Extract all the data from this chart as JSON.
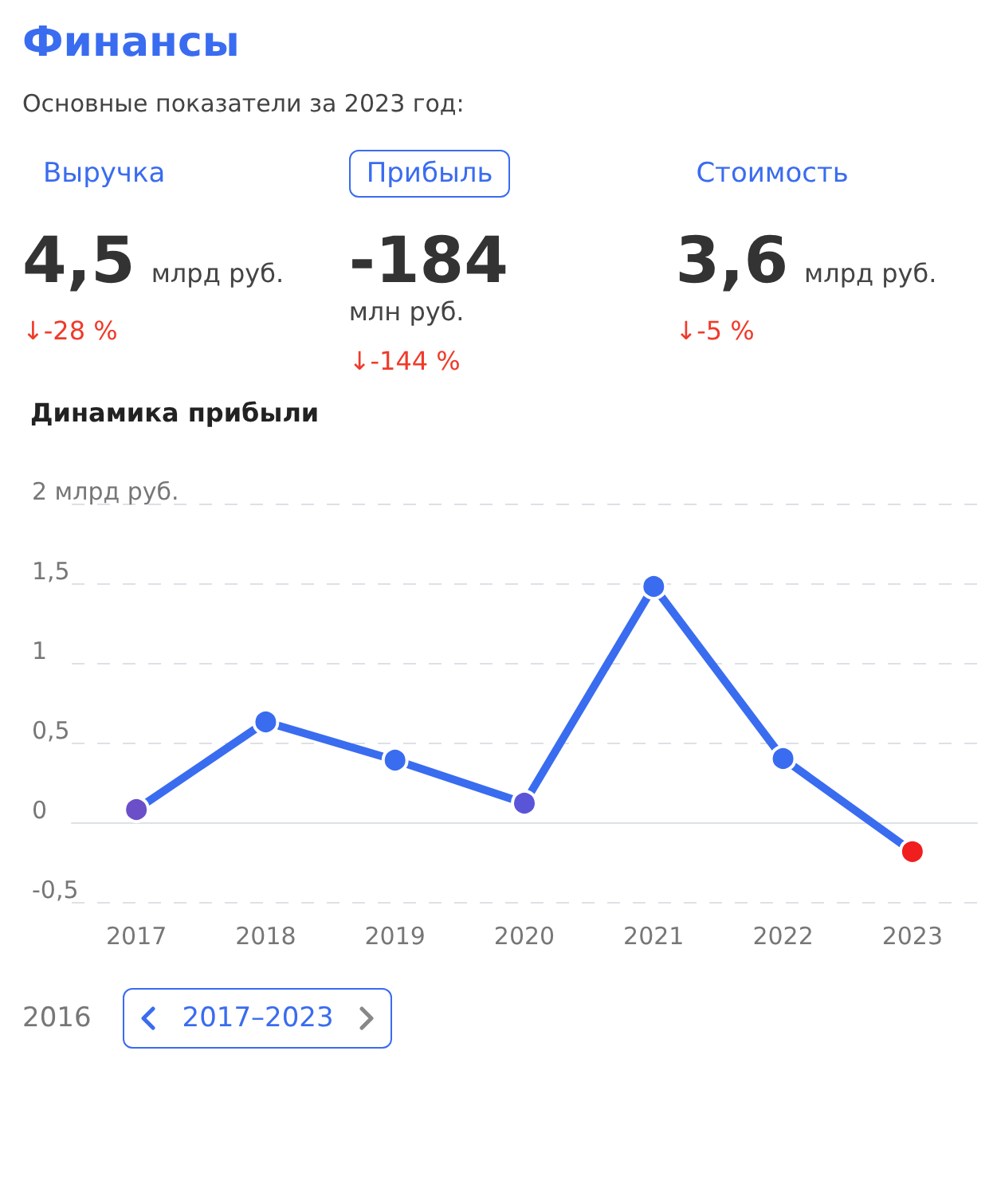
{
  "chart_data": [
    {
      "type": "other",
      "title": "Финансы",
      "subtitle": "Основные показатели за 2023 год:",
      "annotations": [
        "Выручка",
        "4,5",
        "млрд руб.",
        "↓-28 %",
        "Прибыль",
        "-184",
        "млн руб.",
        "↓-144 %",
        "Стоимость",
        "3,6",
        "млрд руб.",
        "↓-5 %"
      ]
    },
    {
      "type": "line",
      "title": "Динамика прибыли",
      "categories": [
        "2017",
        "2018",
        "2019",
        "2020",
        "2021",
        "2022",
        "2023"
      ],
      "series": [
        {
          "color": "#3a6cf0",
          "colors": [
            "#6a4fc8",
            "#3a6cf0",
            "#3a6cf0",
            "#5a55d8",
            "#3a6cf0",
            "#3a6cf0",
            "#f01e1e"
          ],
          "values": [
            0.08,
            0.63,
            0.39,
            0.12,
            1.48,
            0.4,
            -0.184
          ]
        }
      ],
      "ylim": [
        -0.5,
        2
      ],
      "yticks": [
        {
          "value": -0.5,
          "label": "-0,5"
        },
        {
          "value": 0,
          "label": "0"
        },
        {
          "value": 0.5,
          "label": "0,5"
        },
        {
          "value": 1,
          "label": "1"
        },
        {
          "value": 1.5,
          "label": "1,5"
        },
        {
          "value": 2,
          "label": "2 млрд руб."
        }
      ],
      "grid": "y",
      "marker": "circle",
      "line_style": "solid",
      "annotations": [
        "2016",
        "2017–2023"
      ]
    }
  ]
}
